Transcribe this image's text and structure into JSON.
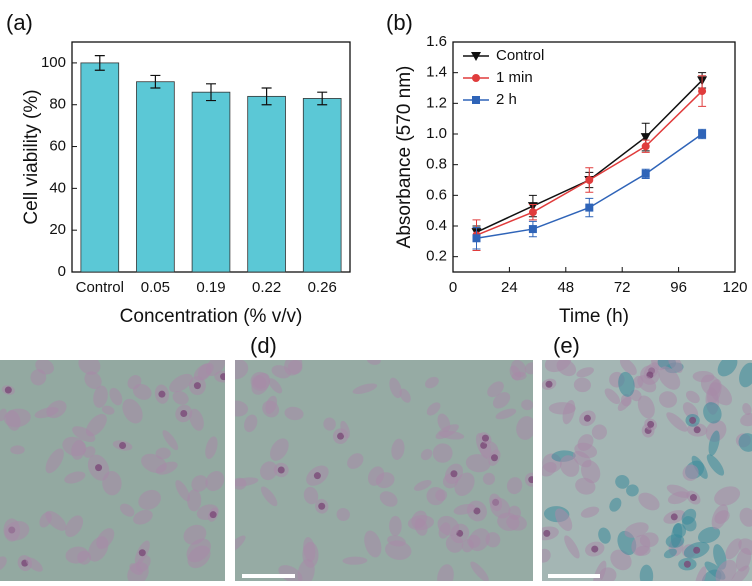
{
  "chart_data": [
    {
      "type": "bar",
      "panel_label": "(a)",
      "xlabel": "Concentration (% v/v)",
      "ylabel": "Cell viability (%)",
      "categories": [
        "Control",
        "0.05",
        "0.19",
        "0.22",
        "0.26"
      ],
      "values": [
        100,
        91,
        86,
        84,
        83
      ],
      "errors": [
        3.5,
        3,
        4,
        4,
        3
      ],
      "color": "#5bc8d6",
      "ylim": [
        0,
        110
      ],
      "yticks": [
        0,
        20,
        40,
        60,
        80,
        100
      ]
    },
    {
      "type": "line",
      "panel_label": "(b)",
      "xlabel": "Time (h)",
      "ylabel": "Absorbance (570 nm)",
      "x": [
        10,
        34,
        58,
        82,
        106
      ],
      "legend": "upper left",
      "series": [
        {
          "name": "Control",
          "color": "#111111",
          "marker": "triangle-down",
          "values": [
            0.36,
            0.53,
            0.7,
            0.98,
            1.35
          ],
          "errors": [
            0.04,
            0.07,
            0.05,
            0.09,
            0.05
          ]
        },
        {
          "name": "1 min",
          "color": "#e03c3c",
          "marker": "circle",
          "values": [
            0.34,
            0.49,
            0.7,
            0.92,
            1.28
          ],
          "errors": [
            0.1,
            0.05,
            0.08,
            0.04,
            0.1
          ]
        },
        {
          "name": "2 h",
          "color": "#2f64b8",
          "marker": "square",
          "values": [
            0.32,
            0.38,
            0.52,
            0.74,
            1.0
          ],
          "errors": [
            0.07,
            0.05,
            0.06,
            0.03,
            0.03
          ]
        }
      ],
      "xlim": [
        0,
        120
      ],
      "xticks": [
        0,
        24,
        48,
        72,
        96,
        120
      ],
      "ylim": [
        0.1,
        1.6
      ],
      "yticks": [
        0.2,
        0.4,
        0.6,
        0.8,
        {
          "value": 1,
          "label": "1.0"
        },
        1.2,
        1.4,
        1.6
      ]
    }
  ],
  "image_panels": [
    {
      "label": "(d)"
    },
    {
      "label": "(e)"
    }
  ]
}
